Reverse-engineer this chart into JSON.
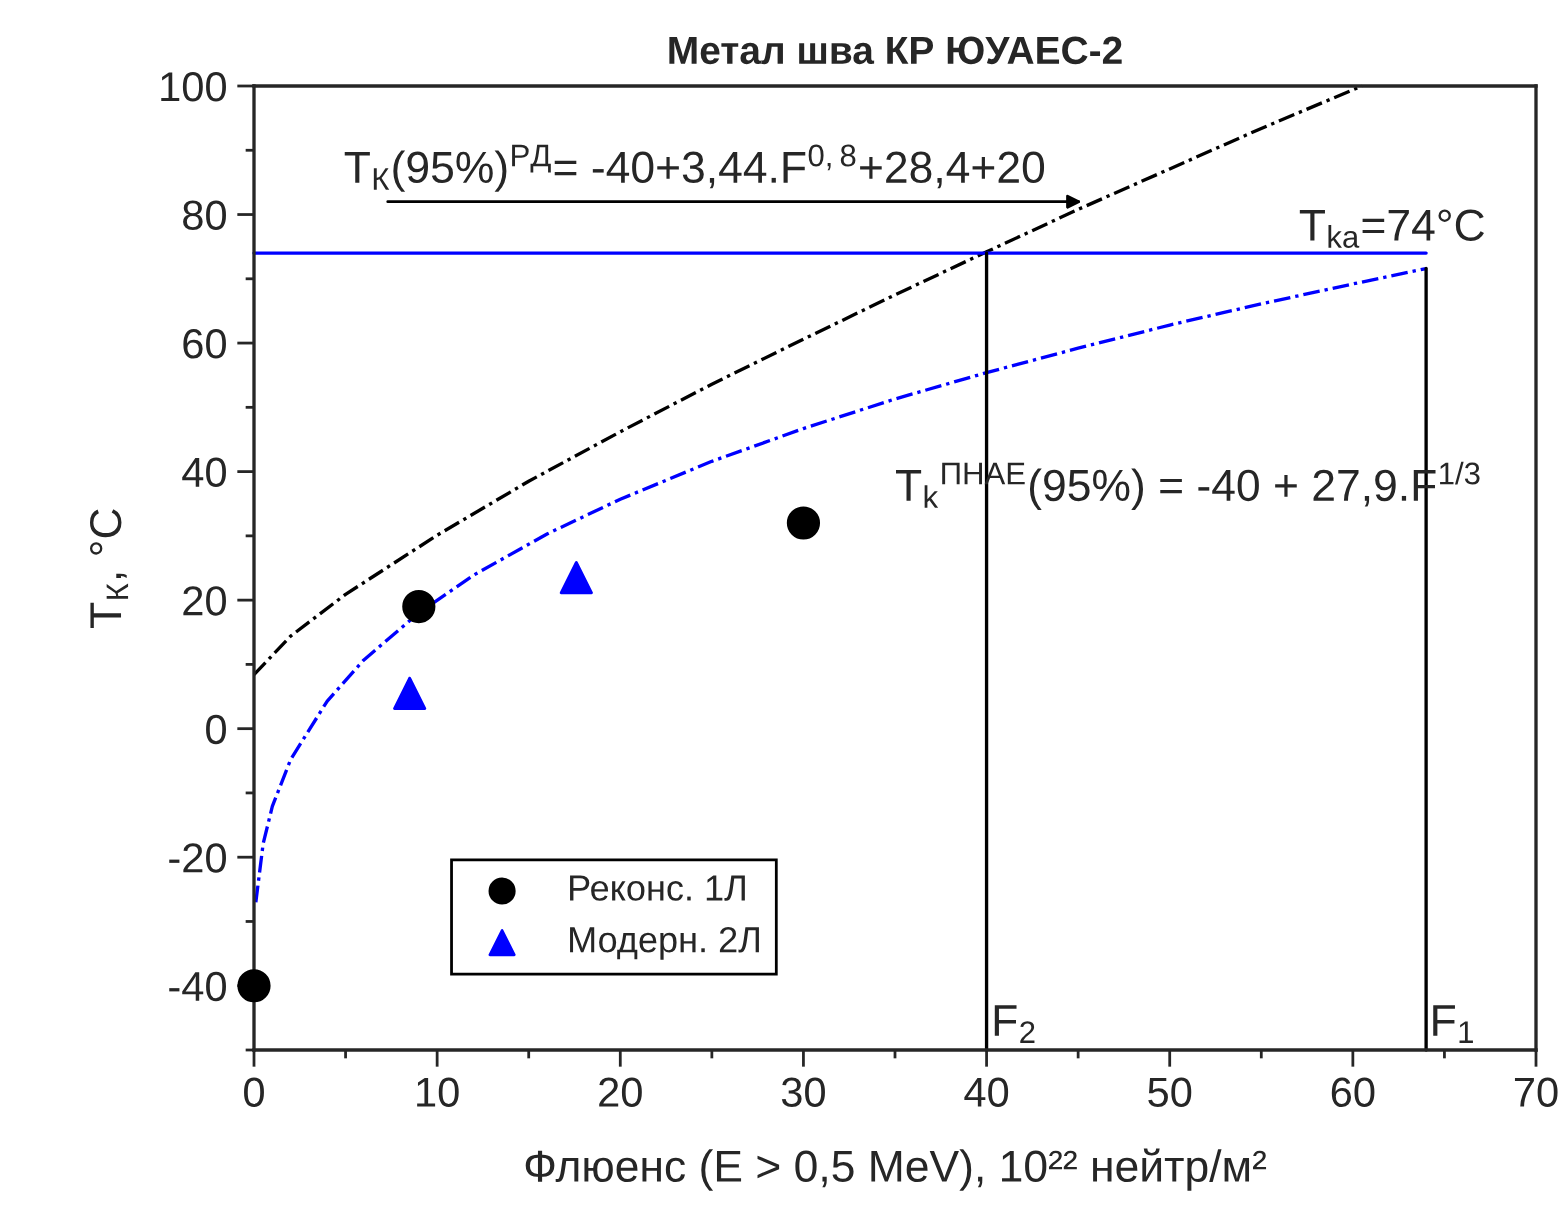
{
  "chart_data": {
    "type": "scatter",
    "title": "Метал шва КР ЮУАЕС-2",
    "xlabel": "Флюенс (E > 0,5 MeV), 10²² нейтр/м²",
    "ylabel": "T$_{К}$, °C",
    "series": [
      {
        "name": "Реконс. 1Л",
        "color": "#000000",
        "marker": "circle",
        "x": [
          0,
          9,
          30
        ],
        "values": [
          -40,
          19,
          32
        ]
      },
      {
        "name": "Модерн. 2Л",
        "color": "#0000ff",
        "marker": "triangle",
        "x": [
          8.5,
          17.6
        ],
        "values": [
          5.5,
          23.5
        ]
      },
      {
        "type": "line",
        "color": "#000000",
        "line_style": "dashdot",
        "x": [
          0,
          2,
          5,
          10,
          15,
          20,
          25,
          30,
          35,
          40,
          45,
          50,
          55,
          60.5
        ],
        "values": [
          8.4,
          14.4,
          20.9,
          30.1,
          38.5,
          46.2,
          53.6,
          60.6,
          67.5,
          74.2,
          80.8,
          87.1,
          93.4,
          100
        ]
      },
      {
        "type": "line",
        "color": "#0000ff",
        "line_style": "dashdot",
        "x": [
          0.1,
          0.5,
          1,
          2,
          4,
          6,
          9,
          12,
          16,
          20,
          25,
          30,
          35,
          40,
          45,
          50,
          55,
          60,
          64
        ],
        "values": [
          -27.0,
          -17.9,
          -12.1,
          -4.8,
          4.3,
          10.7,
          18.0,
          23.9,
          30.3,
          35.7,
          41.6,
          46.7,
          51.3,
          55.4,
          59.2,
          62.8,
          66.1,
          69.2,
          71.6
        ]
      },
      {
        "type": "line",
        "color": "#0000ff",
        "line_style": "solid",
        "x": [
          0,
          64
        ],
        "values": [
          74,
          74
        ]
      },
      {
        "type": "line",
        "color": "#000000",
        "line_style": "solid",
        "x": [
          40,
          40
        ],
        "values": [
          -50,
          74
        ]
      },
      {
        "type": "line",
        "color": "#000000",
        "line_style": "solid",
        "x": [
          64,
          64
        ],
        "values": [
          -50,
          71.6
        ]
      }
    ],
    "annotations": [
      "T$_{К}$(95%)$^{РД}$= -40+3,44.F$^{0,8}$+28,4+20",
      "T$_{k}$$^{ПНАЕ}$(95%) = -40 + 27,9.F$^{1/3}$",
      "T$_{ka}$=74°C",
      "F$_{2}$",
      "F$_{1}$"
    ],
    "xlim": [
      0,
      70
    ],
    "ylim": [
      -50,
      100
    ],
    "xticks": [
      0,
      10,
      20,
      30,
      40,
      50,
      60,
      70
    ],
    "yticks": [
      -40,
      -20,
      0,
      20,
      40,
      60,
      80,
      100
    ],
    "grid": false,
    "legend": "bottom left"
  }
}
